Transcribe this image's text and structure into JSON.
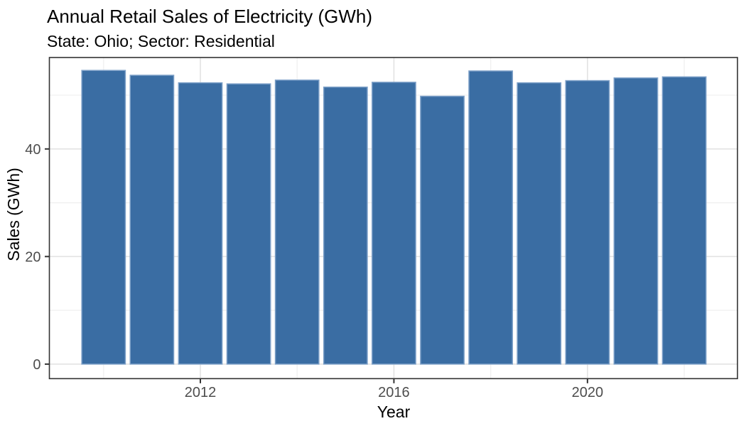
{
  "chart_data": {
    "type": "bar",
    "title": "Annual Retail Sales of Electricity (GWh)",
    "subtitle": "State: Ohio; Sector: Residential",
    "xlabel": "Year",
    "ylabel": "Sales (GWh)",
    "categories": [
      2010,
      2011,
      2012,
      2013,
      2014,
      2015,
      2016,
      2017,
      2018,
      2019,
      2020,
      2021,
      2022
    ],
    "values": [
      54.6,
      53.7,
      52.3,
      52.1,
      52.8,
      51.5,
      52.4,
      49.8,
      54.5,
      52.3,
      52.7,
      53.2,
      53.4
    ],
    "bar_width_years": 0.9,
    "xticks": [
      2012,
      2016,
      2020
    ],
    "yticks": [
      0,
      20,
      40
    ],
    "minor_xticks": [
      2010,
      2014,
      2018,
      2022
    ],
    "minor_yticks": [
      10,
      30,
      50
    ],
    "xlim": [
      2008.88,
      2023.1
    ],
    "ylim": [
      -2.7,
      57.0
    ],
    "legend": "none",
    "grid": "on",
    "colors": {
      "bar_fill": "#3A6DA3",
      "bar_stroke": "#7DA0C8",
      "grid_major": "#e3e3e3",
      "grid_minor": "#f0f0f0",
      "panel_border": "#333333",
      "tick_mark": "#333333",
      "tick_label": "#4d4d4d",
      "title_text": "#000000",
      "background": "#ffffff"
    }
  }
}
